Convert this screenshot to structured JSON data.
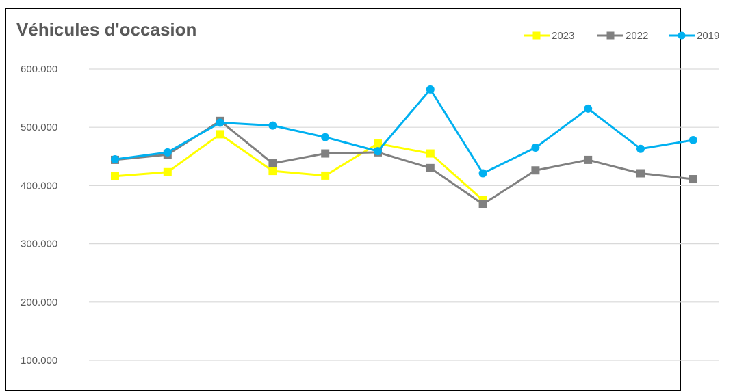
{
  "chart_data": {
    "type": "line",
    "title": "Véhicules d'occasion",
    "xlabel": "",
    "ylabel": "",
    "ylim": [
      100000,
      600000
    ],
    "yticks": [
      100000,
      200000,
      300000,
      400000,
      500000,
      600000
    ],
    "ytick_labels": [
      "100.000",
      "200.000",
      "300.000",
      "400.000",
      "500.000",
      "600.000"
    ],
    "grid": true,
    "legend_position": "top-right",
    "x": [
      1,
      2,
      3,
      4,
      5,
      6,
      7,
      8,
      9,
      10,
      11,
      12
    ],
    "series": [
      {
        "name": "2023",
        "color": "#FFFF00",
        "marker": "square",
        "values": [
          416000,
          423000,
          488000,
          425000,
          417000,
          472000,
          455000,
          375000,
          null,
          null,
          null,
          null
        ]
      },
      {
        "name": "2022",
        "color": "#808080",
        "marker": "square",
        "values": [
          444000,
          453000,
          511000,
          438000,
          455000,
          457000,
          430000,
          368000,
          426000,
          444000,
          421000,
          411000
        ]
      },
      {
        "name": "2019",
        "color": "#00B0F0",
        "marker": "circle",
        "values": [
          445000,
          457000,
          508000,
          503000,
          483000,
          459000,
          565000,
          421000,
          465000,
          532000,
          463000,
          478000
        ]
      }
    ]
  }
}
